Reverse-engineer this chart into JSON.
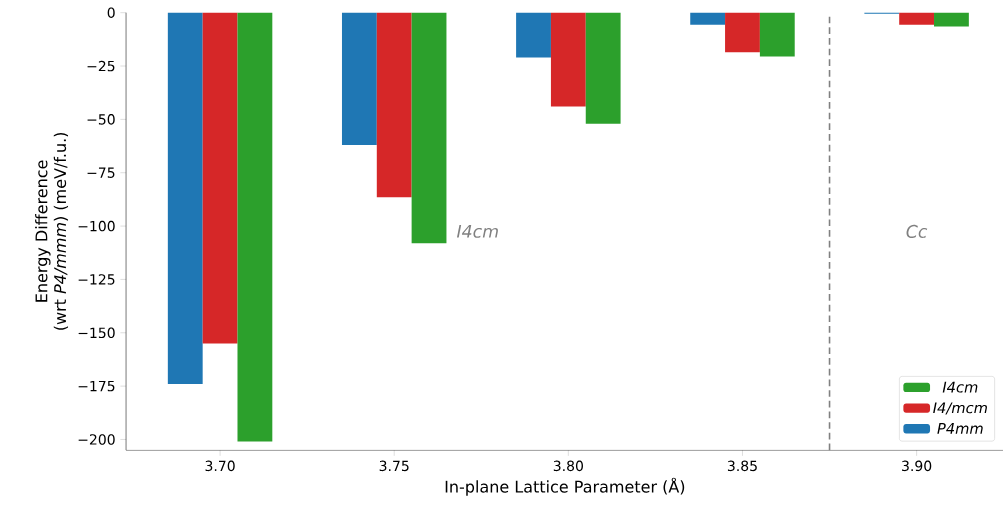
{
  "chart_data": {
    "type": "bar",
    "x": [
      3.7,
      3.75,
      3.8,
      3.85,
      3.9
    ],
    "xlabel": "In-plane Lattice Parameter (Å)",
    "ylabel": "Energy Difference\n(wrt *P4/mmm*) (meV/f.u.)",
    "series": [
      {
        "name": "P4mm",
        "color": "#1f77b4",
        "values": [
          -174,
          -62,
          -21,
          -5.6,
          -0.5
        ]
      },
      {
        "name": "I4/mcm",
        "color": "#d62728",
        "values": [
          -155,
          -86.5,
          -44,
          -18.5,
          -5.6
        ]
      },
      {
        "name": "I4cm",
        "color": "#2ca02c",
        "values": [
          -201,
          -108,
          -52,
          -20.5,
          -6.5
        ]
      }
    ],
    "xlim": [
      3.673,
      3.925
    ],
    "ylim": [
      -205,
      0
    ],
    "xticks": [
      {
        "value": 3.7,
        "label": "3.70"
      },
      {
        "value": 3.75,
        "label": "3.75"
      },
      {
        "value": 3.8,
        "label": "3.80"
      },
      {
        "value": 3.85,
        "label": "3.85"
      },
      {
        "value": 3.9,
        "label": "3.90"
      }
    ],
    "yticks": [
      {
        "value": -200,
        "label": "−200"
      },
      {
        "value": -175,
        "label": "−175"
      },
      {
        "value": -150,
        "label": "−150"
      },
      {
        "value": -125,
        "label": "−125"
      },
      {
        "value": -100,
        "label": "−100"
      },
      {
        "value": -75,
        "label": "−75"
      },
      {
        "value": -50,
        "label": "−50"
      },
      {
        "value": -25,
        "label": "−25"
      },
      {
        "value": 0,
        "label": "0"
      }
    ],
    "ref_lines": [
      {
        "axis": "x",
        "value": 3.875,
        "color": "#808080",
        "line_style": "dashed"
      }
    ],
    "annotations": [
      "I4cm",
      "Cc"
    ],
    "legend": "bottom right",
    "grid": false
  }
}
